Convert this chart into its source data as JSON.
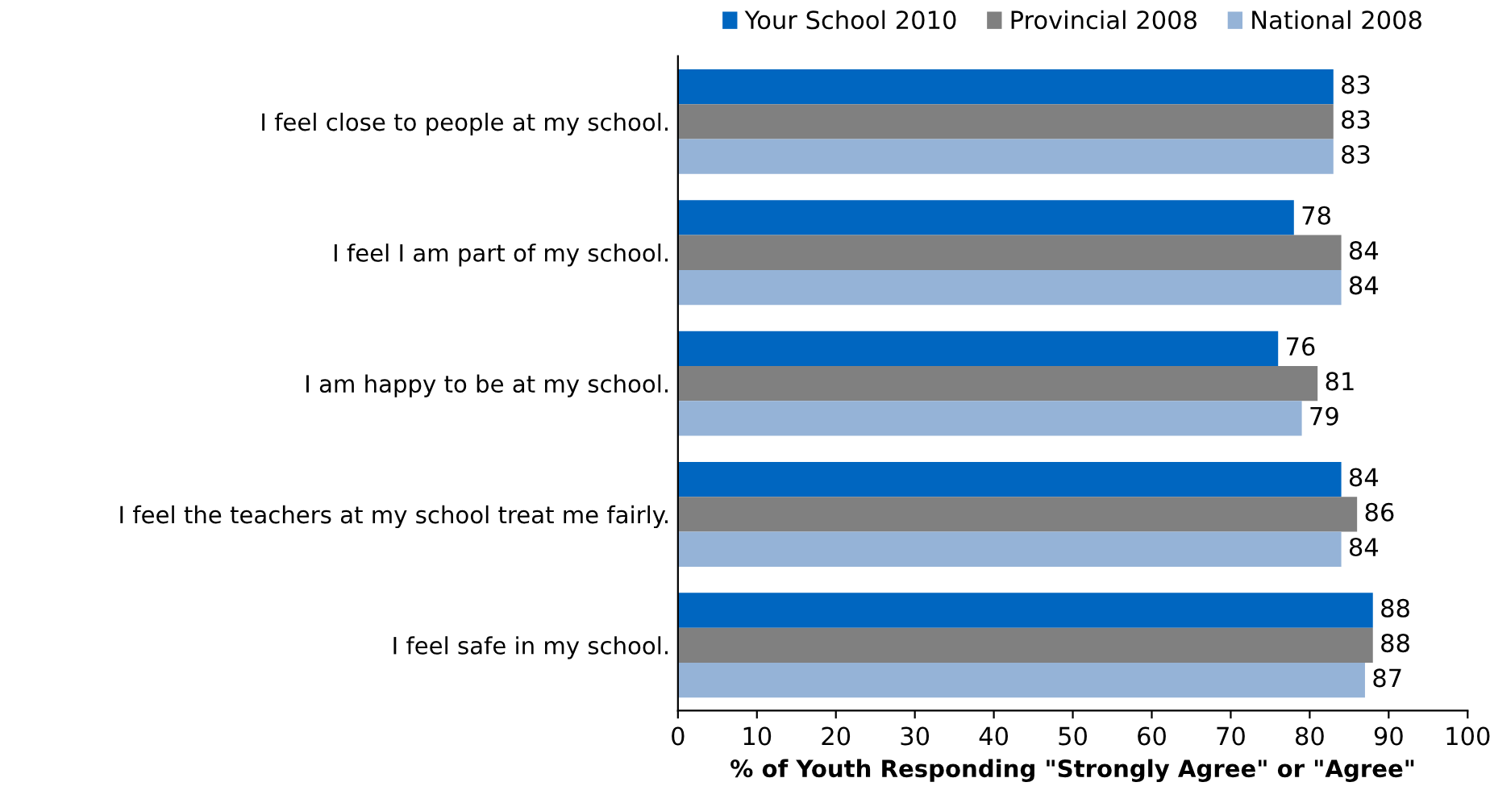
{
  "chart_data": {
    "type": "bar",
    "orientation": "horizontal",
    "categories": [
      "I feel close to people at my school.",
      "I feel I am part of my school.",
      "I am happy to be at my school.",
      "I feel the teachers at my school treat me fairly.",
      "I feel safe in my school."
    ],
    "series": [
      {
        "name": "Your School 2010",
        "color": "#0066c0",
        "values": [
          83,
          78,
          76,
          84,
          88
        ]
      },
      {
        "name": "Provincial 2008",
        "color": "#808080",
        "values": [
          83,
          84,
          81,
          86,
          88
        ]
      },
      {
        "name": "National 2008",
        "color": "#95b3d7",
        "values": [
          83,
          84,
          79,
          84,
          87
        ]
      }
    ],
    "xlabel": "% of Youth Responding \"Strongly Agree\" or \"Agree\"",
    "xlim": [
      0,
      100
    ],
    "xticks": [
      0,
      10,
      20,
      30,
      40,
      50,
      60,
      70,
      80,
      90,
      100
    ],
    "data_labels": true,
    "legend": "top",
    "grid": false
  }
}
